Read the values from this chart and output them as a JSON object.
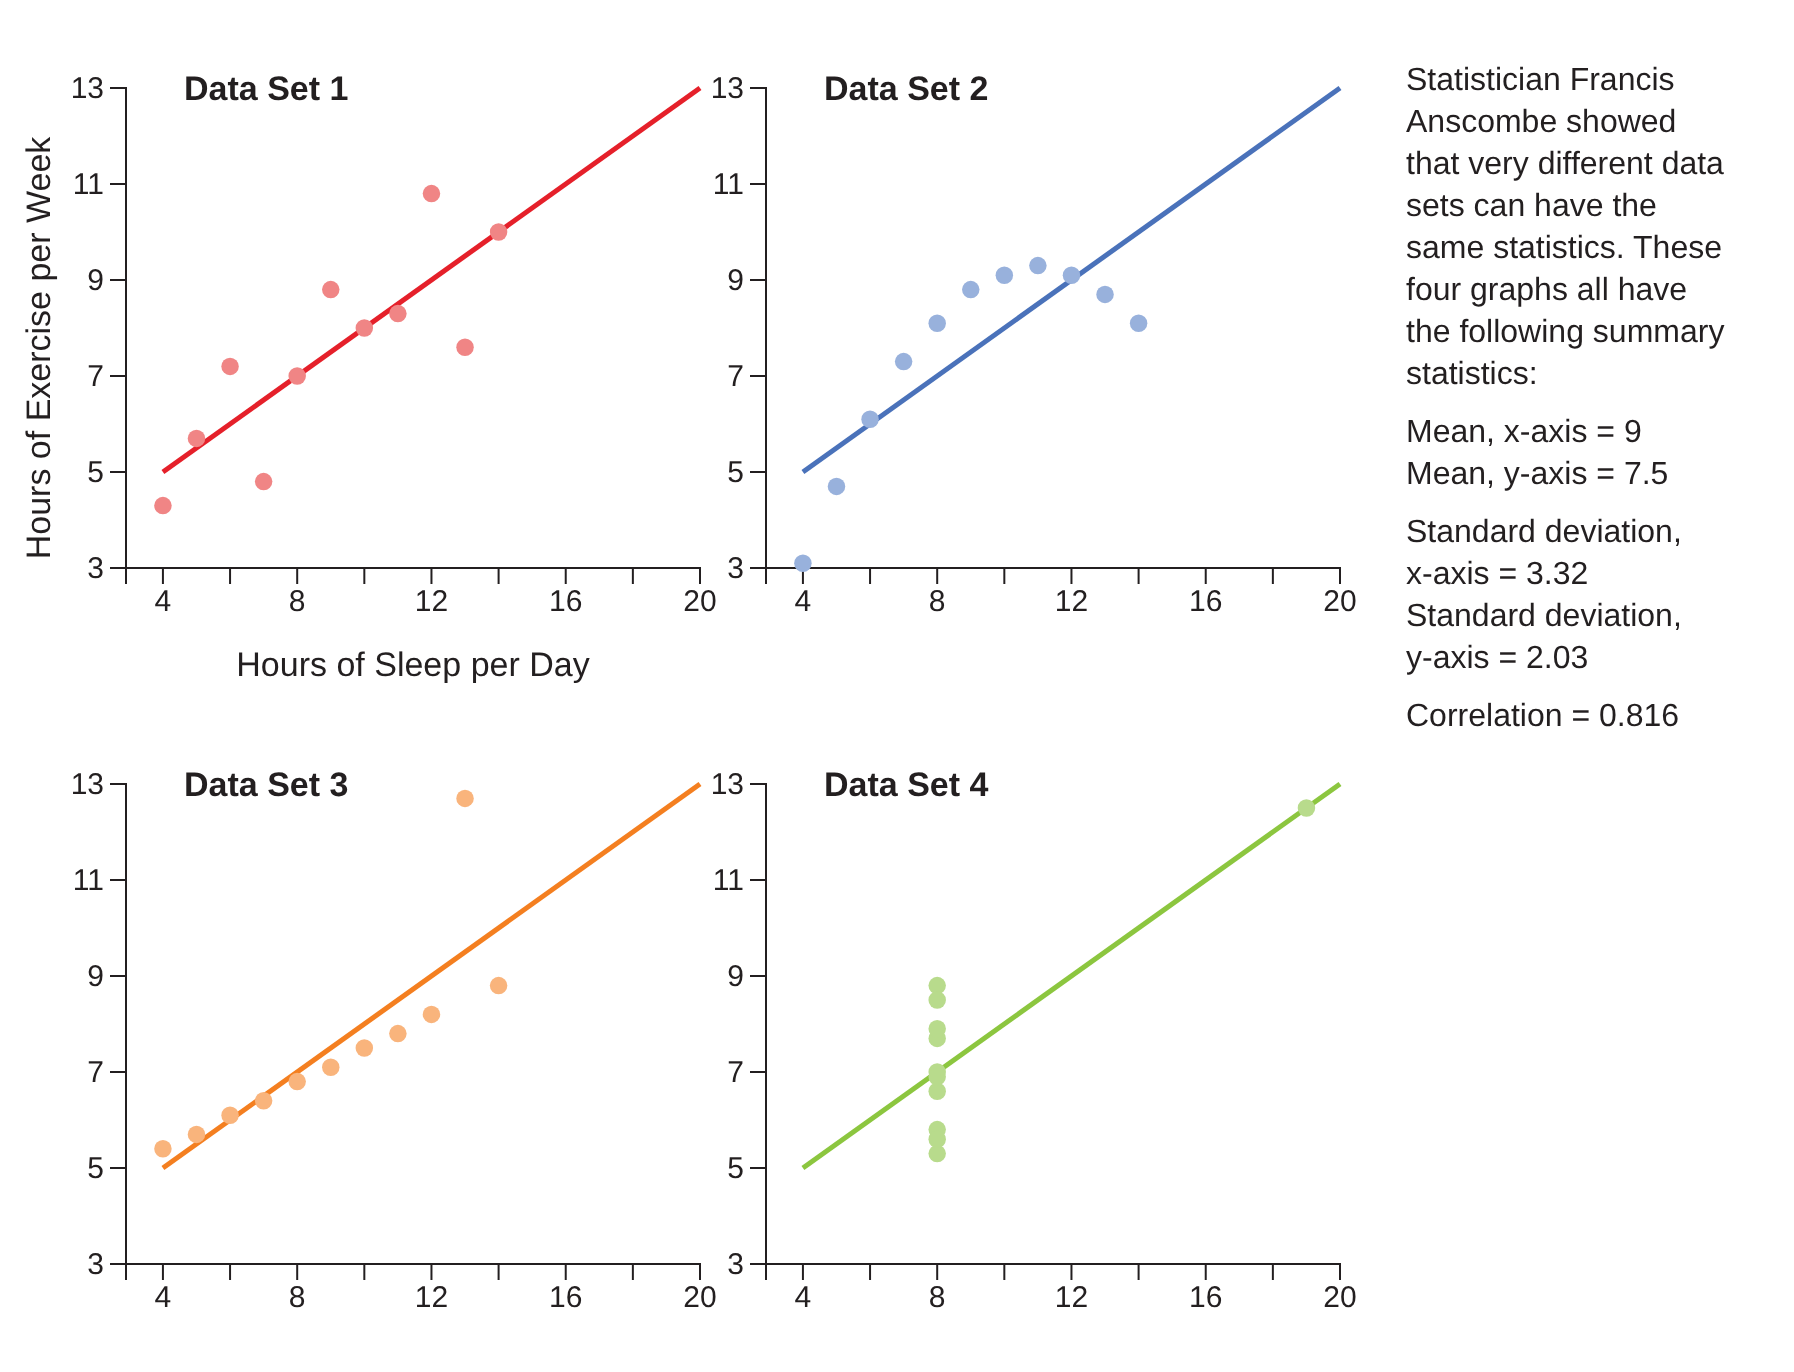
{
  "chart_data": [
    {
      "type": "scatter",
      "title": "Data Set 1",
      "xlabel": "Hours of Sleep per Day",
      "ylabel": "Hours of Exercise per Week",
      "xlim": [
        2.9,
        20
      ],
      "ylim": [
        3,
        13
      ],
      "xticks": [
        4,
        {
          "value": 6,
          "label": null
        },
        8,
        {
          "value": 10,
          "label": null
        },
        12,
        {
          "value": 14,
          "label": null
        },
        16,
        {
          "value": 18,
          "label": null
        },
        20
      ],
      "yticks": [
        3,
        5,
        7,
        9,
        11,
        13
      ],
      "marker": "circle",
      "grid": false,
      "series": [
        {
          "color": "#f08585",
          "x": [
            10,
            8,
            13,
            9,
            11,
            14,
            6,
            4,
            12,
            7,
            5
          ],
          "values": [
            8.0,
            7.0,
            7.6,
            8.8,
            8.3,
            10.0,
            7.2,
            4.3,
            10.8,
            4.8,
            5.7
          ]
        },
        {
          "type": "line",
          "color": "#e5202a",
          "marker": "none",
          "x": [
            4,
            20
          ],
          "values": [
            5,
            13
          ]
        }
      ]
    },
    {
      "type": "scatter",
      "title": "Data Set 2",
      "xlim": [
        2.9,
        20
      ],
      "ylim": [
        3,
        13
      ],
      "xticks": [
        4,
        {
          "value": 6,
          "label": null
        },
        8,
        {
          "value": 10,
          "label": null
        },
        12,
        {
          "value": 14,
          "label": null
        },
        16,
        {
          "value": 18,
          "label": null
        },
        20
      ],
      "yticks": [
        3,
        5,
        7,
        9,
        11,
        13
      ],
      "marker": "circle",
      "grid": false,
      "series": [
        {
          "color": "#98b1dc",
          "x": [
            10,
            8,
            13,
            9,
            11,
            14,
            6,
            4,
            12,
            7,
            5
          ],
          "values": [
            9.1,
            8.1,
            8.7,
            8.8,
            9.3,
            8.1,
            6.1,
            3.1,
            9.1,
            7.3,
            4.7
          ]
        },
        {
          "type": "line",
          "color": "#4a72ba",
          "marker": "none",
          "x": [
            4,
            20
          ],
          "values": [
            5,
            13
          ]
        }
      ]
    },
    {
      "type": "scatter",
      "title": "Data Set 3",
      "xlim": [
        2.9,
        20
      ],
      "ylim": [
        3,
        13
      ],
      "xticks": [
        4,
        {
          "value": 6,
          "label": null
        },
        8,
        {
          "value": 10,
          "label": null
        },
        12,
        {
          "value": 14,
          "label": null
        },
        16,
        {
          "value": 18,
          "label": null
        },
        20
      ],
      "yticks": [
        3,
        5,
        7,
        9,
        11,
        13
      ],
      "marker": "circle",
      "grid": false,
      "series": [
        {
          "color": "#f9b47c",
          "x": [
            10,
            8,
            13,
            9,
            11,
            14,
            6,
            4,
            12,
            7,
            5
          ],
          "values": [
            7.5,
            6.8,
            12.7,
            7.1,
            7.8,
            8.8,
            6.1,
            5.4,
            8.2,
            6.4,
            5.7
          ]
        },
        {
          "type": "line",
          "color": "#f47f20",
          "marker": "none",
          "x": [
            4,
            20
          ],
          "values": [
            5,
            13
          ]
        }
      ]
    },
    {
      "type": "scatter",
      "title": "Data Set 4",
      "xlim": [
        2.9,
        20
      ],
      "ylim": [
        3,
        13
      ],
      "xticks": [
        4,
        {
          "value": 6,
          "label": null
        },
        8,
        {
          "value": 10,
          "label": null
        },
        12,
        {
          "value": 14,
          "label": null
        },
        16,
        {
          "value": 18,
          "label": null
        },
        20
      ],
      "yticks": [
        3,
        5,
        7,
        9,
        11,
        13
      ],
      "marker": "circle",
      "grid": false,
      "series": [
        {
          "color": "#b8db8c",
          "x": [
            8,
            8,
            8,
            8,
            8,
            8,
            8,
            19,
            8,
            8,
            8
          ],
          "values": [
            6.6,
            5.8,
            7.7,
            8.8,
            8.5,
            7.0,
            5.3,
            12.5,
            5.6,
            7.9,
            6.9
          ]
        },
        {
          "type": "line",
          "color": "#8cc63f",
          "marker": "none",
          "x": [
            4,
            20
          ],
          "values": [
            5,
            13
          ]
        }
      ]
    },
    {
      "type": "other",
      "annotations": [
        "Statistician Francis Anscombe showed that very different data sets can have the same statistics. These four graphs all have the following summary statistics:",
        "Mean, x-axis = 9\nMean, y-axis = 7.5",
        "Standard deviation, x-axis = 3.32\nStandard deviation, y-axis = 2.03",
        "Correlation = 0.816"
      ]
    }
  ]
}
